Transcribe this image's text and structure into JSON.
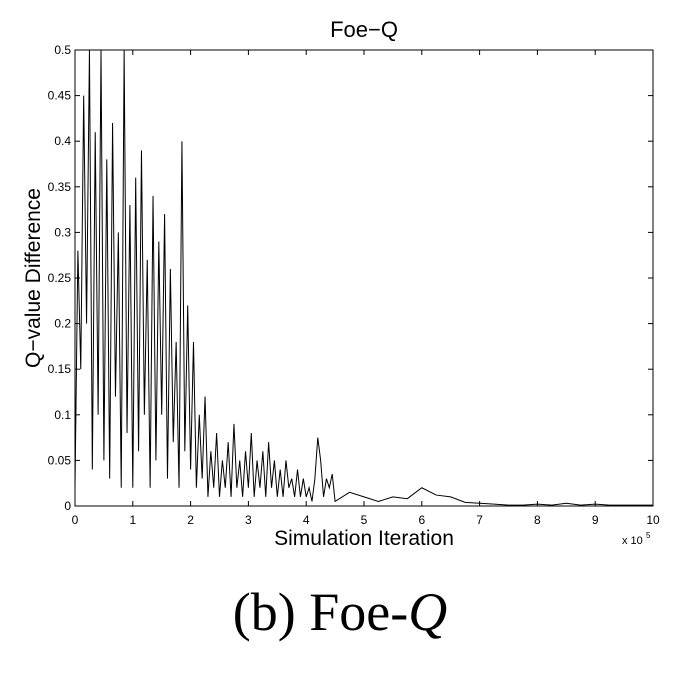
{
  "chart_data": {
    "type": "line",
    "title": "Foe−Q",
    "xlabel": "Simulation Iteration",
    "ylabel": "Q−value Difference",
    "x_scale_label": {
      "base": "x 10",
      "exponent": "5"
    },
    "caption": {
      "prefix": "(b) Foe-",
      "emphasis": "Q"
    },
    "color": "#000000",
    "xlim": [
      0,
      10
    ],
    "xticks": [
      0,
      1,
      2,
      3,
      4,
      5,
      6,
      7,
      8,
      9,
      10
    ],
    "ylim": [
      0,
      0.5
    ],
    "yticks": [
      0,
      0.05,
      0.1,
      0.15,
      0.2,
      0.25,
      0.3,
      0.35,
      0.4,
      0.45,
      0.5
    ],
    "x": [
      0,
      0.05,
      0.1,
      0.15,
      0.2,
      0.25,
      0.3,
      0.35,
      0.4,
      0.45,
      0.5,
      0.55,
      0.6,
      0.65,
      0.7,
      0.75,
      0.8,
      0.85,
      0.9,
      0.95,
      1,
      1.05,
      1.1,
      1.15,
      1.2,
      1.25,
      1.3,
      1.35,
      1.4,
      1.45,
      1.5,
      1.55,
      1.6,
      1.65,
      1.7,
      1.75,
      1.8,
      1.85,
      1.9,
      1.95,
      2,
      2.05,
      2.1,
      2.15,
      2.2,
      2.25,
      2.3,
      2.35,
      2.4,
      2.45,
      2.5,
      2.55,
      2.6,
      2.65,
      2.7,
      2.75,
      2.8,
      2.85,
      2.9,
      2.95,
      3,
      3.05,
      3.1,
      3.15,
      3.2,
      3.25,
      3.3,
      3.35,
      3.4,
      3.45,
      3.5,
      3.55,
      3.6,
      3.65,
      3.7,
      3.75,
      3.8,
      3.85,
      3.9,
      3.95,
      4,
      4.05,
      4.1,
      4.15,
      4.2,
      4.25,
      4.3,
      4.35,
      4.4,
      4.45,
      4.5,
      4.75,
      5,
      5.25,
      5.5,
      5.75,
      6,
      6.25,
      6.5,
      6.75,
      7,
      7.25,
      7.5,
      7.75,
      8,
      8.25,
      8.5,
      8.75,
      9,
      9.25,
      9.5,
      9.75,
      10
    ],
    "values": [
      0.02,
      0.28,
      0.15,
      0.45,
      0.2,
      0.5,
      0.04,
      0.41,
      0.1,
      0.5,
      0.05,
      0.38,
      0.03,
      0.42,
      0.12,
      0.3,
      0.02,
      0.5,
      0.08,
      0.33,
      0.02,
      0.36,
      0.06,
      0.39,
      0.1,
      0.27,
      0.02,
      0.34,
      0.05,
      0.29,
      0.1,
      0.32,
      0.03,
      0.26,
      0.07,
      0.18,
      0.02,
      0.4,
      0.06,
      0.22,
      0.04,
      0.18,
      0.02,
      0.1,
      0.03,
      0.12,
      0.01,
      0.06,
      0.02,
      0.08,
      0.01,
      0.05,
      0.02,
      0.07,
      0.01,
      0.09,
      0.02,
      0.05,
      0.01,
      0.06,
      0.02,
      0.08,
      0.01,
      0.05,
      0.02,
      0.06,
      0.01,
      0.07,
      0.02,
      0.05,
      0.01,
      0.04,
      0.01,
      0.05,
      0.02,
      0.03,
      0.01,
      0.04,
      0.01,
      0.03,
      0.01,
      0.02,
      0.005,
      0.03,
      0.075,
      0.05,
      0.01,
      0.03,
      0.02,
      0.035,
      0.005,
      0.015,
      0.01,
      0.005,
      0.01,
      0.008,
      0.02,
      0.012,
      0.01,
      0.004,
      0.003,
      0.002,
      0.001,
      0.001,
      0.002,
      0.001,
      0.003,
      0.001,
      0.002,
      0.001,
      0.001,
      0.001,
      0.001
    ]
  }
}
